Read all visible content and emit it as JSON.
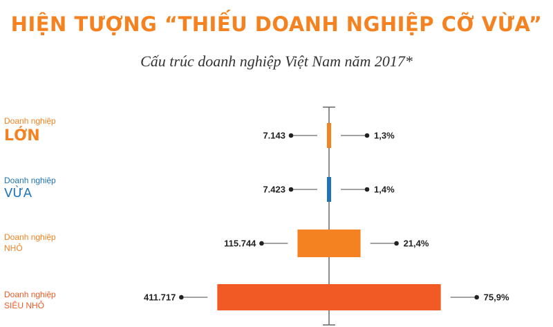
{
  "title": "HIỆN TƯỢNG “THIẾU DOANH NGHIỆP CỠ VỪA”",
  "subtitle": "Cấu trúc doanh nghiệp Việt Nam năm 2017*",
  "colors": {
    "title": "#f58220",
    "orange": "#f58220",
    "blue": "#1f73b7",
    "dark_orange": "#f15a24",
    "axis": "#666666"
  },
  "chart_data": {
    "type": "bar",
    "title": "HIỆN TƯỢNG “THIẾU DOANH NGHIỆP CỠ VỪA”",
    "subtitle": "Cấu trúc doanh nghiệp Việt Nam năm 2017*",
    "categories": [
      {
        "line1": "Doanh nghiệp",
        "line2": "LỚN",
        "count": 7143,
        "count_label": "7.143",
        "percent": 1.3,
        "percent_label": "1,3%",
        "color": "#f58220",
        "label_color": "#f58220",
        "style": "big"
      },
      {
        "line1": "Doanh nghiệp",
        "line2": "VỪA",
        "count": 7423,
        "count_label": "7.423",
        "percent": 1.4,
        "percent_label": "1,4%",
        "color": "#1f73b7",
        "label_color": "#1f73b7",
        "style": "mid"
      },
      {
        "line1": "Doanh nghiệp",
        "line2": "NHỎ",
        "count": 115744,
        "count_label": "115.744",
        "percent": 21.4,
        "percent_label": "21,4%",
        "color": "#f58220",
        "label_color": "#f58220",
        "style": "small"
      },
      {
        "line1": "Doanh nghiệp",
        "line2": "SIÊU NHỎ",
        "count": 411717,
        "count_label": "411.717",
        "percent": 75.9,
        "percent_label": "75,9%",
        "color": "#f15a24",
        "label_color": "#f15a24",
        "style": "small"
      }
    ],
    "orientation": "centered-horizontal",
    "grid": false,
    "legend": "none"
  }
}
